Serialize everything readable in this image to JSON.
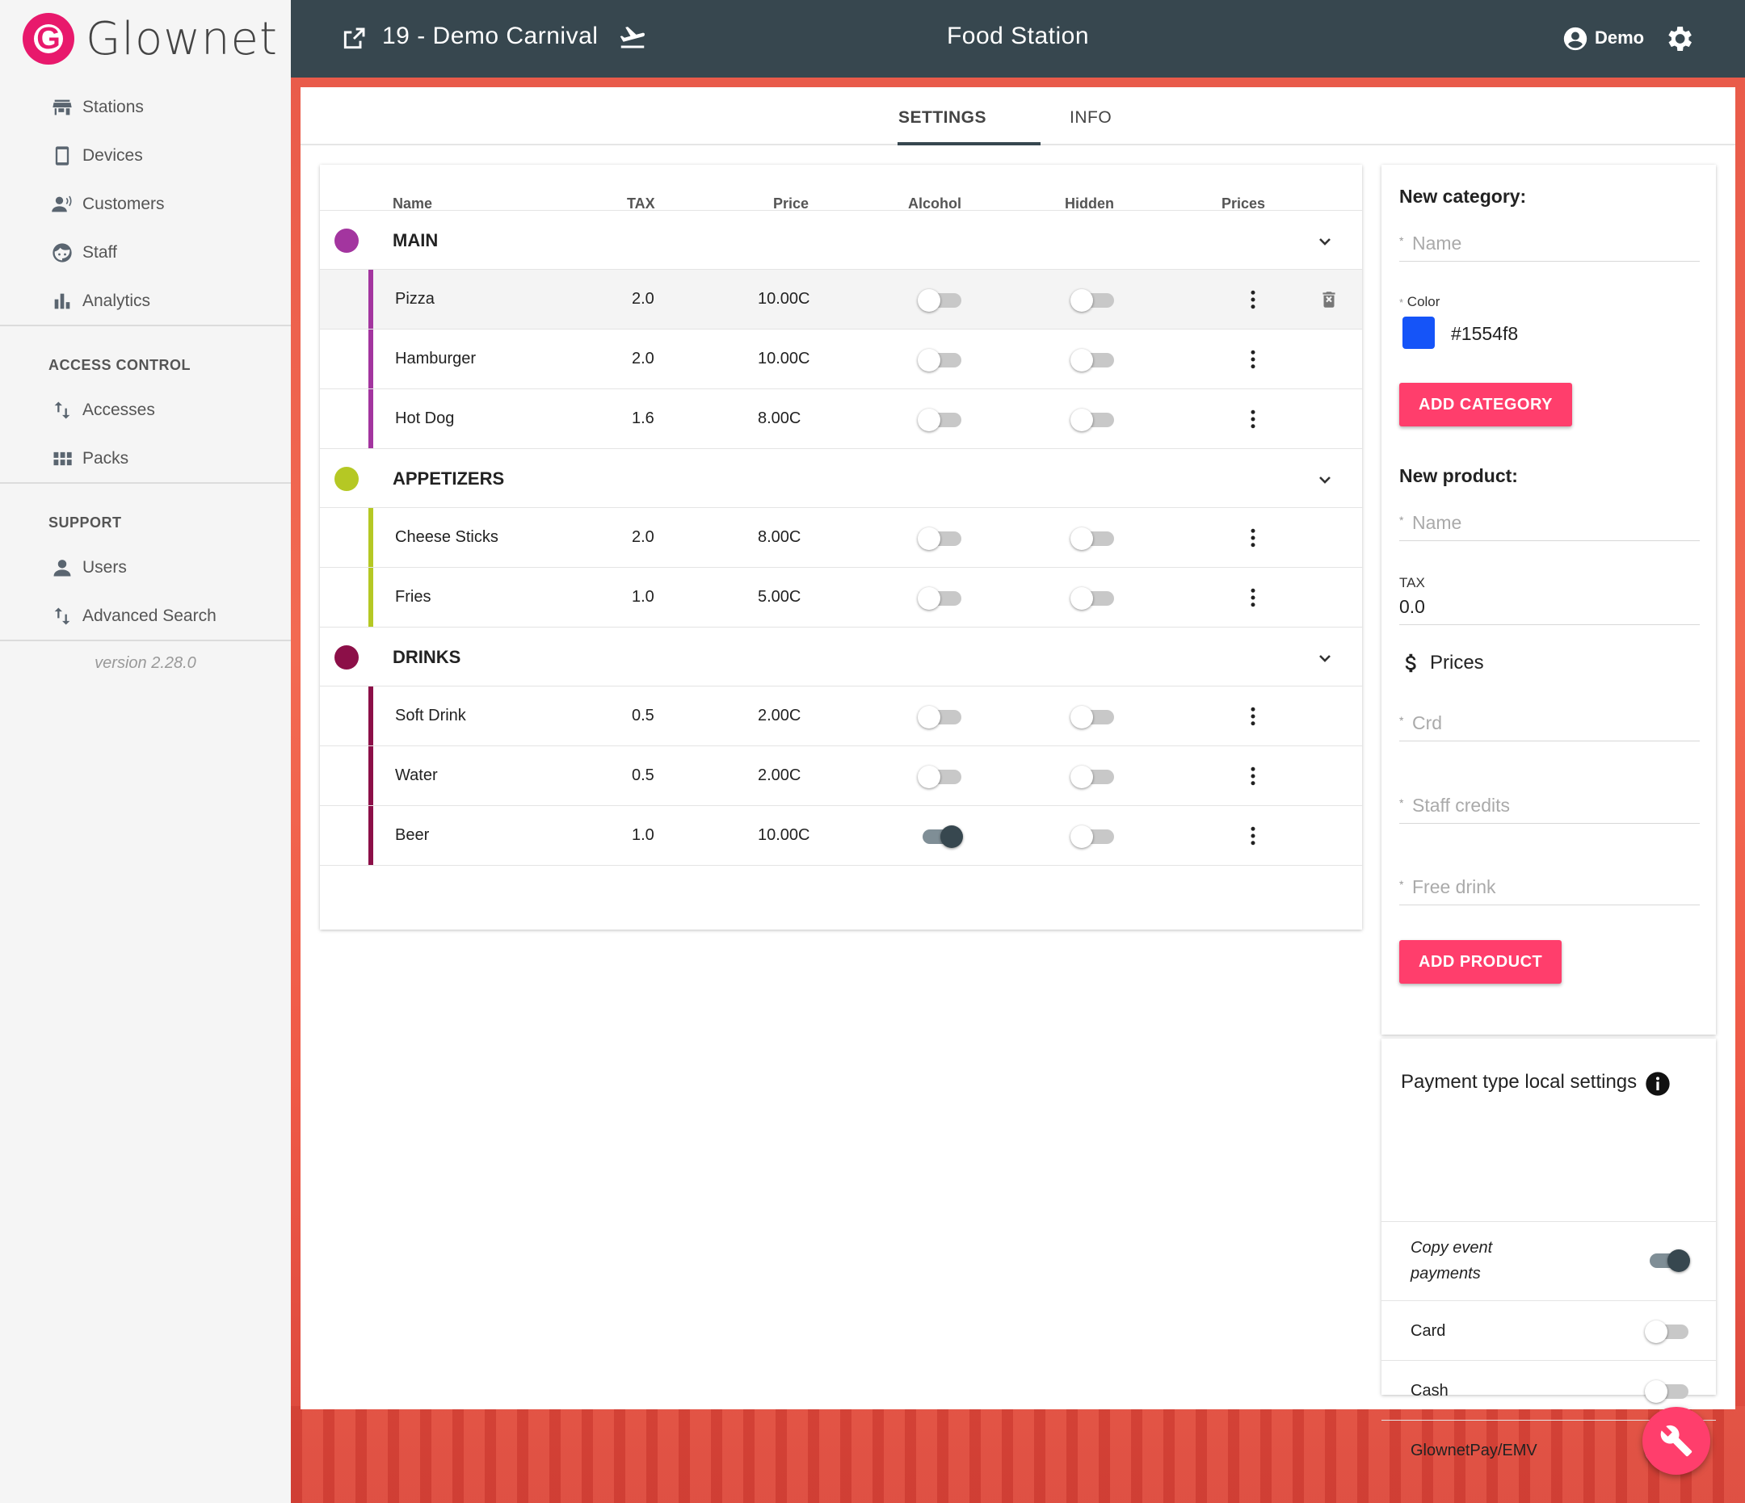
{
  "brand": {
    "name": "Glownet"
  },
  "sidebar": {
    "items": [
      {
        "label": "Stations",
        "icon": "store-icon"
      },
      {
        "label": "Devices",
        "icon": "phone-icon"
      },
      {
        "label": "Customers",
        "icon": "customers-icon"
      },
      {
        "label": "Staff",
        "icon": "face-icon"
      },
      {
        "label": "Analytics",
        "icon": "bar-chart-icon"
      }
    ],
    "access_section": "ACCESS CONTROL",
    "access_items": [
      {
        "label": "Accesses",
        "icon": "swap-vertical-icon"
      },
      {
        "label": "Packs",
        "icon": "grid-icon"
      }
    ],
    "support_section": "SUPPORT",
    "support_items": [
      {
        "label": "Users",
        "icon": "person-icon"
      },
      {
        "label": "Advanced Search",
        "icon": "swap-vertical-icon"
      }
    ],
    "version": "version 2.28.0"
  },
  "topbar": {
    "event": "19 - Demo Carnival",
    "page_title": "Food Station",
    "user": "Demo"
  },
  "tabs": {
    "settings": "SETTINGS",
    "info": "INFO"
  },
  "table": {
    "headers": {
      "name": "Name",
      "tax": "TAX",
      "price": "Price",
      "alcohol": "Alcohol",
      "hidden": "Hidden",
      "prices": "Prices"
    },
    "categories": [
      {
        "name": "MAIN",
        "color": "#a3359f",
        "products": [
          {
            "name": "Pizza",
            "tax": "2.0",
            "price": "10.00C",
            "alcohol": false,
            "hidden": false
          },
          {
            "name": "Hamburger",
            "tax": "2.0",
            "price": "10.00C",
            "alcohol": false,
            "hidden": false
          },
          {
            "name": "Hot Dog",
            "tax": "1.6",
            "price": "8.00C",
            "alcohol": false,
            "hidden": false
          }
        ]
      },
      {
        "name": "APPETIZERS",
        "color": "#b5c824",
        "products": [
          {
            "name": "Cheese Sticks",
            "tax": "2.0",
            "price": "8.00C",
            "alcohol": false,
            "hidden": false
          },
          {
            "name": "Fries",
            "tax": "1.0",
            "price": "5.00C",
            "alcohol": false,
            "hidden": false
          }
        ]
      },
      {
        "name": "DRINKS",
        "color": "#8c0f48",
        "products": [
          {
            "name": "Soft Drink",
            "tax": "0.5",
            "price": "2.00C",
            "alcohol": false,
            "hidden": false
          },
          {
            "name": "Water",
            "tax": "0.5",
            "price": "2.00C",
            "alcohol": false,
            "hidden": false
          },
          {
            "name": "Beer",
            "tax": "1.0",
            "price": "10.00C",
            "alcohol": true,
            "hidden": false
          }
        ]
      }
    ]
  },
  "new_category": {
    "heading": "New category:",
    "name_placeholder": "Name",
    "color_label": "Color",
    "color_value": "#1554f8",
    "button": "ADD CATEGORY"
  },
  "new_product": {
    "heading": "New product:",
    "name_placeholder": "Name",
    "tax_label": "TAX",
    "tax_value": "0.0",
    "prices_label": "Prices",
    "crd_placeholder": "Crd",
    "staff_credits_placeholder": "Staff credits",
    "free_drink_placeholder": "Free drink",
    "button": "ADD PRODUCT"
  },
  "payment": {
    "title": "Payment type local settings",
    "copy_label_line1": "Copy event",
    "copy_label_line2": "payments",
    "copy_on": true,
    "methods": [
      {
        "label": "Card",
        "on": false
      },
      {
        "label": "Cash",
        "on": false
      },
      {
        "label": "GlownetPay/EMV",
        "on": false
      }
    ]
  },
  "required_mark": "*",
  "colors": {
    "topbar": "#37474f",
    "accent": "#ff3e6c",
    "brand": "#e8196c"
  }
}
